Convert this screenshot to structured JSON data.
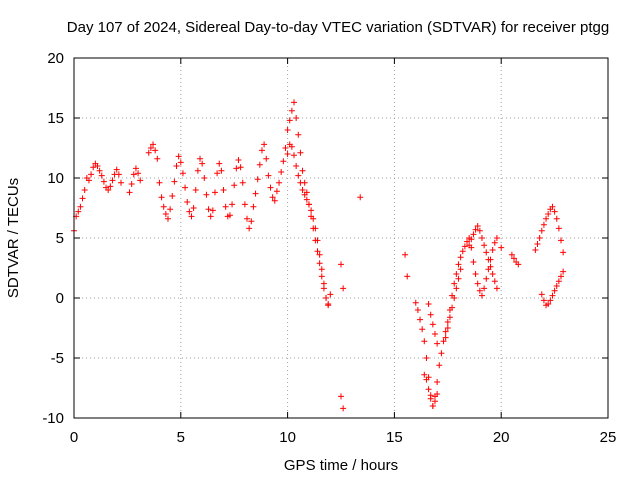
{
  "chart_data": {
    "type": "scatter",
    "title": "Day 107 of 2024, Sidereal Day-to-day VTEC variation (SDTVAR) for receiver ptgg",
    "xlabel": "GPS time / hours",
    "ylabel": "SDTVAR / TECUs",
    "xlim": [
      0,
      25
    ],
    "ylim": [
      -10,
      20
    ],
    "xticks": [
      "0",
      "5",
      "10",
      "15",
      "20",
      "25"
    ],
    "yticks": [
      "-10",
      "-5",
      "0",
      "5",
      "10",
      "15",
      "20"
    ],
    "grid": true,
    "marker": "plus",
    "color": "#ff0000",
    "series": [
      {
        "x": [
          0.0,
          0.1,
          0.2,
          0.3,
          0.4,
          0.5,
          0.6,
          0.7,
          0.8,
          0.9,
          1.0,
          1.1,
          1.2,
          1.3,
          1.4,
          1.5,
          1.6,
          1.7,
          1.8,
          1.9,
          2.0,
          2.1,
          2.2,
          2.6,
          2.7,
          2.8,
          2.9,
          3.0,
          3.1,
          3.5,
          3.6,
          3.7,
          3.8,
          3.9,
          4.0,
          4.1,
          4.2,
          4.3,
          4.4,
          4.5,
          4.6,
          4.7,
          4.8,
          4.9,
          5.0,
          5.1,
          5.2,
          5.3,
          5.4,
          5.5,
          5.6,
          5.7,
          5.8,
          5.9,
          6.0,
          6.1,
          6.2,
          6.3,
          6.4,
          6.5,
          6.6,
          6.7,
          6.8,
          6.9,
          7.0,
          7.1,
          7.2,
          7.3,
          7.4,
          7.5,
          7.6,
          7.7,
          7.8,
          7.9,
          8.0,
          8.1,
          8.2,
          8.3,
          8.4,
          8.5,
          8.6,
          8.7,
          8.8,
          8.9,
          9.0,
          9.1,
          9.2,
          9.3,
          9.4,
          9.5,
          9.6,
          9.7,
          9.8,
          9.9,
          10.0,
          10.1,
          10.2,
          10.3,
          10.4,
          10.5,
          10.6,
          10.7,
          10.8,
          10.9,
          11.0,
          11.1,
          11.2,
          11.3,
          11.4,
          11.5,
          11.6,
          11.7,
          11.8,
          11.9,
          12.0,
          12.5,
          12.6,
          13.4,
          15.5,
          15.6,
          16.0,
          16.1,
          16.2,
          16.3,
          16.4,
          16.5,
          16.6,
          16.7,
          16.8,
          16.9,
          17.0,
          17.1,
          17.2,
          17.3,
          17.4,
          17.5,
          17.6,
          17.7,
          17.8,
          17.9,
          18.0,
          18.1,
          18.2,
          18.3,
          18.4,
          18.5,
          18.6,
          18.7,
          18.8,
          18.9,
          19.0,
          19.1,
          19.2,
          19.3,
          19.4,
          19.5,
          19.6,
          19.7,
          19.8,
          20.0,
          20.5,
          20.6,
          20.7,
          20.8,
          21.6,
          21.7,
          21.8,
          21.9,
          22.0,
          22.1,
          22.2,
          22.3,
          22.4,
          22.5,
          22.6,
          22.7,
          22.8,
          22.9,
          12.5,
          12.6,
          16.6,
          16.7,
          16.8,
          16.9,
          17.0,
          17.4,
          17.5,
          17.6,
          17.7,
          17.8,
          17.9,
          18.0,
          18.1,
          18.5,
          18.6,
          18.7,
          18.8,
          18.9,
          19.0,
          19.1,
          19.2,
          19.3,
          19.4,
          19.5,
          19.6,
          19.7,
          19.8,
          21.9,
          22.0,
          22.1,
          22.2,
          22.3,
          22.4,
          22.5,
          22.6,
          22.7,
          22.8,
          22.9,
          16.4,
          16.5,
          16.6,
          16.7,
          16.8,
          16.9,
          17.0,
          10.0,
          10.1,
          10.2,
          10.3,
          10.4,
          10.5,
          10.6,
          10.7,
          10.8,
          10.9,
          11.0,
          11.1,
          11.2,
          11.3,
          11.4,
          11.5,
          11.6,
          11.7,
          11.8,
          11.9
        ],
        "y": [
          5.6,
          6.8,
          7.2,
          7.6,
          8.3,
          9.0,
          10.0,
          9.8,
          10.3,
          10.9,
          11.2,
          11.0,
          10.6,
          10.2,
          9.7,
          9.2,
          9.0,
          9.3,
          9.8,
          10.3,
          10.7,
          10.3,
          9.6,
          8.8,
          9.5,
          10.3,
          10.8,
          10.4,
          9.8,
          12.1,
          12.5,
          12.8,
          12.3,
          11.6,
          9.6,
          8.4,
          7.6,
          7.0,
          6.6,
          7.4,
          8.5,
          9.7,
          11.0,
          11.8,
          11.3,
          10.4,
          9.2,
          8.0,
          7.2,
          6.8,
          7.5,
          9.0,
          10.6,
          11.6,
          11.2,
          10.0,
          8.6,
          7.4,
          6.8,
          7.3,
          8.8,
          10.4,
          11.2,
          10.6,
          9.0,
          7.6,
          6.8,
          6.9,
          7.8,
          9.4,
          10.8,
          11.5,
          10.9,
          9.6,
          7.8,
          6.6,
          5.8,
          6.4,
          7.6,
          8.7,
          9.9,
          11.1,
          12.3,
          12.8,
          11.6,
          10.2,
          9.2,
          8.4,
          8.1,
          8.9,
          9.6,
          10.5,
          11.4,
          12.5,
          14.0,
          14.8,
          15.6,
          16.3,
          15.0,
          13.6,
          12.1,
          10.6,
          9.6,
          8.8,
          7.8,
          6.8,
          5.8,
          4.8,
          3.9,
          2.9,
          1.8,
          0.8,
          0.0,
          -0.5,
          0.3,
          2.8,
          0.8,
          8.4,
          3.6,
          1.8,
          -0.4,
          -1.0,
          -1.8,
          -2.6,
          -3.6,
          -5.0,
          -6.6,
          -8.1,
          -9.0,
          -8.2,
          -7.0,
          -5.6,
          -4.6,
          -3.6,
          -2.8,
          -2.0,
          -1.0,
          0.2,
          1.2,
          2.0,
          2.8,
          3.4,
          3.9,
          4.3,
          4.7,
          5.0,
          4.2,
          3.0,
          2.0,
          1.2,
          0.6,
          0.2,
          0.8,
          1.6,
          2.4,
          3.2,
          4.0,
          4.6,
          5.0,
          4.2,
          3.6,
          3.3,
          3.0,
          2.8,
          4.0,
          4.5,
          5.0,
          5.6,
          6.1,
          6.6,
          7.0,
          7.4,
          7.6,
          7.2,
          6.6,
          5.8,
          4.8,
          3.8,
          -8.2,
          -9.2,
          -0.5,
          -1.4,
          -2.2,
          -3.0,
          -3.8,
          -3.3,
          -2.5,
          -1.6,
          -0.8,
          0.0,
          0.8,
          1.6,
          2.4,
          4.4,
          4.9,
          5.3,
          5.7,
          6.0,
          5.6,
          5.0,
          4.4,
          3.8,
          3.2,
          2.6,
          2.0,
          1.4,
          0.8,
          0.3,
          -0.2,
          -0.6,
          -0.5,
          -0.2,
          0.2,
          0.6,
          1.0,
          1.4,
          1.8,
          2.2,
          -6.4,
          -6.8,
          -7.6,
          -8.4,
          -9.0,
          -8.6,
          -8.0,
          12.0,
          12.8,
          12.6,
          11.9,
          11.0,
          10.2,
          9.6,
          9.0,
          8.6,
          8.2,
          7.8,
          7.3,
          6.6,
          5.8,
          4.8,
          3.6,
          2.4,
          1.2,
          0.0,
          -0.6
        ]
      }
    ]
  }
}
